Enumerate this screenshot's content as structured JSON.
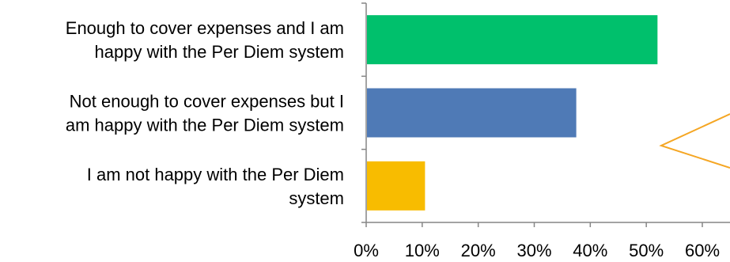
{
  "chart_data": {
    "type": "bar",
    "orientation": "horizontal",
    "categories": [
      [
        "Enough to cover expenses and I am",
        "happy with the Per Diem system"
      ],
      [
        "Not enough to cover expenses but I",
        "am happy with the Per Diem system"
      ],
      [
        "I am not happy with the Per Diem",
        "system"
      ]
    ],
    "values": [
      52,
      37.5,
      10.5
    ],
    "colors": [
      "#00c06c",
      "#4f7ab6",
      "#f8bc00"
    ],
    "xlim": [
      0,
      60
    ],
    "xticks": [
      "0%",
      "10%",
      "20%",
      "30%",
      "40%",
      "50%",
      "60%"
    ],
    "title": "",
    "xlabel": "",
    "ylabel": "",
    "grid": false,
    "legend": "none"
  },
  "callout": {
    "color": "#f5a623"
  }
}
